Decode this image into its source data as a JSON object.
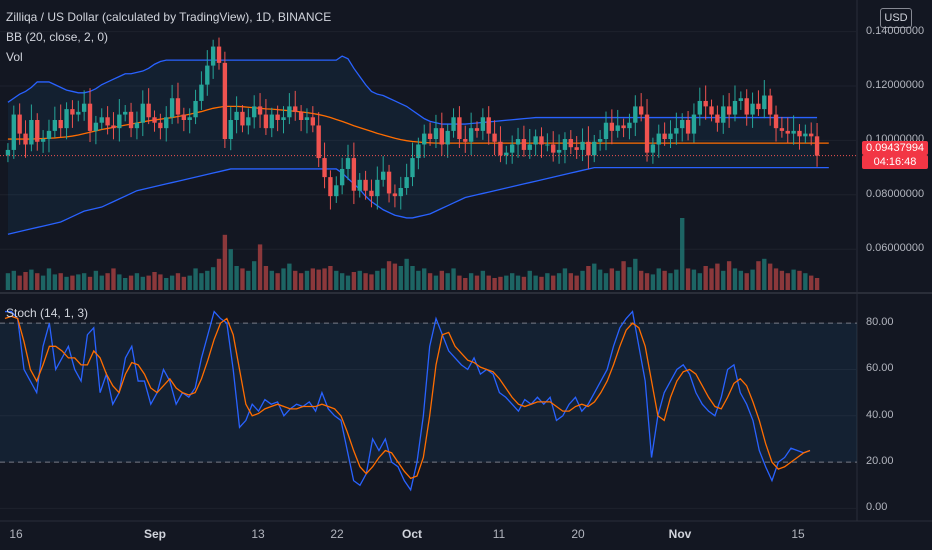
{
  "header": {
    "title": "Zilliqa / US Dollar (calculated by TradingView), 1D, BINANCE",
    "bb_label": "BB (20, close, 2, 0)",
    "vol_label": "Vol",
    "currency_button": "USD"
  },
  "current_price": {
    "value": "0.09437994",
    "countdown": "04:16:48"
  },
  "stoch_label": "Stoch (14, 1, 3)",
  "price_axis": [
    "0.14000000",
    "0.12000000",
    "0.10000000",
    "0.08000000",
    "0.06000000"
  ],
  "stoch_axis": [
    "80.00",
    "60.00",
    "40.00",
    "20.00",
    "0.00"
  ],
  "time_axis": [
    {
      "label": "16",
      "bold": false
    },
    {
      "label": "Sep",
      "bold": true
    },
    {
      "label": "13",
      "bold": false
    },
    {
      "label": "22",
      "bold": false
    },
    {
      "label": "Oct",
      "bold": true
    },
    {
      "label": "11",
      "bold": false
    },
    {
      "label": "20",
      "bold": false
    },
    {
      "label": "Nov",
      "bold": true
    },
    {
      "label": "15",
      "bold": false
    }
  ],
  "colors": {
    "up": "#26a69a",
    "down": "#ef5350",
    "bb_band": "#2962ff",
    "bb_basis": "#ff6d00",
    "stoch_k": "#2962ff",
    "stoch_d": "#ff6d00",
    "grid": "#1e222d",
    "background": "#131722"
  },
  "chart_data": [
    {
      "type": "candlestick",
      "title": "Zilliqa / US Dollar (calculated by TradingView), 1D, BINANCE",
      "x_ticks": [
        "16",
        "Sep",
        "13",
        "22",
        "Oct",
        "11",
        "20",
        "Nov",
        "15"
      ],
      "ylim": [
        0.045,
        0.145
      ],
      "y_ticks": [
        0.06,
        0.08,
        0.1,
        0.12,
        0.14
      ],
      "current_price": 0.09437994,
      "closes": [
        0.0965,
        0.1095,
        0.1025,
        0.0985,
        0.1075,
        0.0995,
        0.1005,
        0.1035,
        0.1075,
        0.1045,
        0.1115,
        0.1095,
        0.1105,
        0.1135,
        0.1035,
        0.1065,
        0.1085,
        0.1055,
        0.1045,
        0.1095,
        0.1105,
        0.1045,
        0.1065,
        0.1135,
        0.1085,
        0.1065,
        0.1045,
        0.1085,
        0.1155,
        0.1095,
        0.1075,
        0.1085,
        0.1145,
        0.1205,
        0.1275,
        0.1345,
        0.1285,
        0.1005,
        0.1075,
        0.1105,
        0.1055,
        0.1085,
        0.1125,
        0.1095,
        0.1045,
        0.1095,
        0.1075,
        0.1085,
        0.1125,
        0.1105,
        0.1075,
        0.1085,
        0.1055,
        0.0935,
        0.0865,
        0.0795,
        0.0835,
        0.0895,
        0.0935,
        0.0815,
        0.0855,
        0.0815,
        0.0795,
        0.0855,
        0.0885,
        0.0805,
        0.0795,
        0.0825,
        0.0865,
        0.0935,
        0.0985,
        0.1025,
        0.1005,
        0.1045,
        0.0985,
        0.1035,
        0.1085,
        0.1005,
        0.0995,
        0.1045,
        0.1035,
        0.1085,
        0.1025,
        0.0995,
        0.0945,
        0.0955,
        0.0985,
        0.1005,
        0.0965,
        0.0985,
        0.1015,
        0.0985,
        0.0985,
        0.0955,
        0.0965,
        0.1005,
        0.0975,
        0.0965,
        0.0995,
        0.0945,
        0.0995,
        0.1005,
        0.1065,
        0.1035,
        0.1055,
        0.1045,
        0.1065,
        0.1125,
        0.1095,
        0.0955,
        0.0985,
        0.1025,
        0.1005,
        0.1025,
        0.1045,
        0.1075,
        0.1025,
        0.1095,
        0.1145,
        0.1125,
        0.1095,
        0.1065,
        0.1125,
        0.1095,
        0.1145,
        0.1155,
        0.1095,
        0.1135,
        0.1115,
        0.1165,
        0.1095,
        0.1045,
        0.1035,
        0.1025,
        0.1035,
        0.1015,
        0.1025,
        0.1015,
        0.0944
      ],
      "bb_upper": [
        0.114,
        0.1155,
        0.117,
        0.118,
        0.1195,
        0.1215,
        0.1215,
        0.1215,
        0.1205,
        0.1195,
        0.1185,
        0.118,
        0.1175,
        0.1175,
        0.118,
        0.119,
        0.1205,
        0.1215,
        0.1225,
        0.1235,
        0.1245,
        0.1245,
        0.125,
        0.1255,
        0.1265,
        0.128,
        0.129,
        0.1295,
        0.1295,
        0.1295,
        0.1295,
        0.1295,
        0.1295,
        0.1295,
        0.1295,
        0.1295,
        0.1295,
        0.1295,
        0.1295,
        0.1295,
        0.1295,
        0.1295,
        0.1295,
        0.1295,
        0.1295,
        0.1295,
        0.1295,
        0.1295,
        0.1295,
        0.1295,
        0.1295,
        0.1295,
        0.1295,
        0.1295,
        0.1295,
        0.1295,
        0.1295,
        0.131,
        0.13,
        0.1265,
        0.1235,
        0.1205,
        0.118,
        0.117,
        0.1165,
        0.1155,
        0.1145,
        0.1135,
        0.1125,
        0.111,
        0.1095,
        0.108,
        0.107,
        0.1065,
        0.106,
        0.106,
        0.106,
        0.106,
        0.106,
        0.1062,
        0.1064,
        0.1066,
        0.1068,
        0.107,
        0.1072,
        0.1074,
        0.1076,
        0.1078,
        0.108,
        0.1082,
        0.1084,
        0.1084,
        0.1084,
        0.1084,
        0.1084,
        0.1084,
        0.1084,
        0.1084,
        0.1084,
        0.1084,
        0.1084,
        0.1084,
        0.1084,
        0.1084,
        0.1084,
        0.1084,
        0.1084,
        0.1084,
        0.1084,
        0.1084,
        0.1084,
        0.1084,
        0.1084,
        0.1084,
        0.1084,
        0.1084,
        0.1084,
        0.1084,
        0.1084,
        0.1084,
        0.1084,
        0.1084,
        0.1084,
        0.1084,
        0.1084,
        0.1084,
        0.1084,
        0.1084,
        0.1084,
        0.1084,
        0.1084,
        0.1084,
        0.1084,
        0.1084,
        0.1084,
        0.1084,
        0.1084,
        0.1084,
        0.1084
      ],
      "bb_basis": [
        0.1005,
        0.1005,
        0.1005,
        0.1005,
        0.1005,
        0.1006,
        0.1007,
        0.1008,
        0.1009,
        0.1011,
        0.1013,
        0.1016,
        0.102,
        0.1025,
        0.103,
        0.1035,
        0.104,
        0.1044,
        0.1048,
        0.1052,
        0.1056,
        0.106,
        0.1064,
        0.1068,
        0.1072,
        0.1075,
        0.1078,
        0.1081,
        0.1084,
        0.1088,
        0.1092,
        0.1096,
        0.1101,
        0.1106,
        0.1112,
        0.1118,
        0.1122,
        0.1125,
        0.1125,
        0.1125,
        0.1124,
        0.1122,
        0.112,
        0.1118,
        0.1116,
        0.1115,
        0.1113,
        0.1111,
        0.1109,
        0.1107,
        0.1105,
        0.1102,
        0.1099,
        0.1095,
        0.109,
        0.1084,
        0.1077,
        0.107,
        0.1062,
        0.1054,
        0.1047,
        0.104,
        0.1033,
        0.1026,
        0.102,
        0.1014,
        0.1008,
        0.1003,
        0.0999,
        0.0996,
        0.0994,
        0.0992,
        0.0991,
        0.099,
        0.099,
        0.099,
        0.099,
        0.099,
        0.099,
        0.099,
        0.099,
        0.099,
        0.099,
        0.099,
        0.099,
        0.099,
        0.099,
        0.099,
        0.099,
        0.099,
        0.099,
        0.099,
        0.099,
        0.099,
        0.099,
        0.099,
        0.099,
        0.099,
        0.099,
        0.099,
        0.099,
        0.099,
        0.099,
        0.099,
        0.099,
        0.099,
        0.099,
        0.099,
        0.099,
        0.099,
        0.099,
        0.099,
        0.099,
        0.099,
        0.099,
        0.099,
        0.099,
        0.099,
        0.099,
        0.099,
        0.099,
        0.099,
        0.099,
        0.099,
        0.099,
        0.099,
        0.099,
        0.099,
        0.099,
        0.099,
        0.099,
        0.099,
        0.099,
        0.099,
        0.099,
        0.099,
        0.099,
        0.099,
        0.099,
        0.099,
        0.099
      ],
      "bb_lower": [
        0.0655,
        0.066,
        0.0665,
        0.067,
        0.0675,
        0.068,
        0.0685,
        0.069,
        0.0695,
        0.07,
        0.071,
        0.072,
        0.073,
        0.074,
        0.0745,
        0.075,
        0.0755,
        0.0765,
        0.0775,
        0.0785,
        0.0795,
        0.0805,
        0.0815,
        0.082,
        0.0825,
        0.083,
        0.0835,
        0.084,
        0.0845,
        0.085,
        0.0855,
        0.086,
        0.0865,
        0.087,
        0.0875,
        0.088,
        0.0885,
        0.089,
        0.0895,
        0.0895,
        0.0895,
        0.0895,
        0.0895,
        0.0895,
        0.0895,
        0.0895,
        0.0895,
        0.0895,
        0.0895,
        0.0895,
        0.0895,
        0.0895,
        0.0895,
        0.0895,
        0.0895,
        0.0895,
        0.0895,
        0.088,
        0.086,
        0.084,
        0.082,
        0.0795,
        0.0775,
        0.076,
        0.0745,
        0.0735,
        0.0725,
        0.072,
        0.0715,
        0.0715,
        0.072,
        0.0725,
        0.073,
        0.074,
        0.075,
        0.076,
        0.077,
        0.078,
        0.079,
        0.0795,
        0.08,
        0.0805,
        0.081,
        0.0815,
        0.082,
        0.0825,
        0.083,
        0.0835,
        0.084,
        0.0845,
        0.085,
        0.0855,
        0.086,
        0.0865,
        0.087,
        0.0875,
        0.088,
        0.0885,
        0.089,
        0.0895,
        0.09,
        0.09,
        0.09,
        0.09,
        0.09,
        0.09,
        0.09,
        0.09,
        0.09,
        0.09,
        0.09,
        0.09,
        0.09,
        0.09,
        0.09,
        0.09,
        0.09,
        0.09,
        0.09,
        0.09,
        0.09,
        0.09,
        0.09,
        0.09,
        0.09,
        0.09,
        0.09,
        0.09,
        0.09,
        0.09,
        0.09,
        0.09,
        0.09,
        0.09,
        0.09,
        0.09,
        0.09,
        0.09,
        0.09,
        0.09,
        0.09
      ],
      "volume": [
        0.7,
        0.8,
        0.6,
        0.75,
        0.85,
        0.7,
        0.6,
        0.9,
        0.65,
        0.7,
        0.55,
        0.6,
        0.65,
        0.7,
        0.55,
        0.8,
        0.6,
        0.7,
        0.9,
        0.65,
        0.5,
        0.6,
        0.7,
        0.55,
        0.6,
        0.75,
        0.65,
        0.5,
        0.6,
        0.7,
        0.55,
        0.6,
        0.9,
        0.7,
        0.8,
        0.95,
        1.3,
        2.3,
        1.7,
        1.0,
        0.9,
        0.8,
        1.2,
        1.9,
        1.0,
        0.8,
        0.7,
        0.9,
        1.1,
        0.8,
        0.7,
        0.8,
        0.9,
        0.85,
        0.9,
        1.0,
        0.8,
        0.7,
        0.6,
        0.75,
        0.8,
        0.7,
        0.65,
        0.8,
        0.9,
        1.2,
        1.1,
        1.0,
        1.3,
        1.0,
        0.8,
        0.9,
        0.7,
        0.6,
        0.8,
        0.7,
        0.9,
        0.6,
        0.5,
        0.7,
        0.6,
        0.8,
        0.6,
        0.5,
        0.55,
        0.6,
        0.7,
        0.6,
        0.55,
        0.8,
        0.6,
        0.55,
        0.7,
        0.6,
        0.7,
        0.9,
        0.7,
        0.6,
        0.8,
        1.0,
        1.1,
        0.85,
        0.7,
        0.9,
        0.8,
        1.2,
        0.95,
        1.3,
        0.8,
        0.7,
        0.65,
        0.9,
        0.8,
        0.7,
        0.85,
        3.0,
        0.9,
        0.85,
        0.7,
        1.0,
        0.9,
        1.1,
        0.8,
        1.2,
        0.9,
        0.8,
        0.7,
        0.85,
        1.2,
        1.3,
        1.1,
        0.9,
        0.8,
        0.7,
        0.85,
        0.8,
        0.7,
        0.6,
        0.5
      ]
    },
    {
      "type": "line",
      "title": "Stoch (14, 1, 3)",
      "ylim": [
        -5,
        90
      ],
      "y_ticks": [
        0,
        20,
        40,
        60,
        80
      ],
      "bands": [
        20,
        80
      ],
      "series": [
        {
          "name": "%K",
          "values": [
            85,
            85,
            82,
            60,
            55,
            50,
            70,
            80,
            60,
            65,
            70,
            60,
            55,
            75,
            78,
            50,
            58,
            45,
            50,
            65,
            70,
            55,
            55,
            45,
            50,
            60,
            55,
            45,
            50,
            48,
            52,
            65,
            75,
            85,
            82,
            80,
            60,
            35,
            38,
            45,
            42,
            47,
            45,
            46,
            40,
            43,
            45,
            44,
            46,
            42,
            50,
            43,
            40,
            38,
            25,
            12,
            10,
            15,
            30,
            25,
            30,
            20,
            18,
            12,
            8,
            20,
            40,
            70,
            82,
            75,
            68,
            65,
            62,
            60,
            65,
            58,
            60,
            58,
            50,
            48,
            45,
            42,
            47,
            45,
            48,
            45,
            48,
            38,
            40,
            45,
            48,
            42,
            45,
            50,
            55,
            60,
            70,
            78,
            82,
            85,
            70,
            55,
            22,
            40,
            50,
            55,
            60,
            62,
            58,
            50,
            45,
            42,
            40,
            48,
            60,
            62,
            50,
            45,
            38,
            25,
            18,
            12,
            20,
            22,
            26,
            25,
            24,
            25
          ]
        },
        {
          "name": "%D",
          "values": [
            82,
            83,
            82,
            72,
            60,
            55,
            62,
            70,
            70,
            68,
            65,
            65,
            62,
            62,
            68,
            65,
            58,
            53,
            50,
            58,
            63,
            62,
            58,
            52,
            50,
            53,
            56,
            52,
            50,
            49,
            50,
            56,
            64,
            73,
            80,
            82,
            75,
            60,
            45,
            40,
            41,
            43,
            44,
            45,
            44,
            43,
            43,
            44,
            44,
            44,
            45,
            44,
            43,
            40,
            33,
            25,
            18,
            15,
            18,
            22,
            25,
            24,
            20,
            16,
            13,
            14,
            22,
            40,
            62,
            75,
            76,
            70,
            67,
            64,
            63,
            61,
            60,
            59,
            56,
            52,
            48,
            45,
            44,
            45,
            46,
            46,
            46,
            44,
            42,
            42,
            44,
            45,
            44,
            46,
            50,
            55,
            62,
            70,
            77,
            80,
            78,
            70,
            55,
            40,
            38,
            48,
            55,
            59,
            60,
            58,
            53,
            48,
            44,
            43,
            48,
            54,
            56,
            53,
            46,
            38,
            28,
            20,
            17,
            18,
            20,
            22,
            24,
            25
          ]
        }
      ]
    }
  ]
}
